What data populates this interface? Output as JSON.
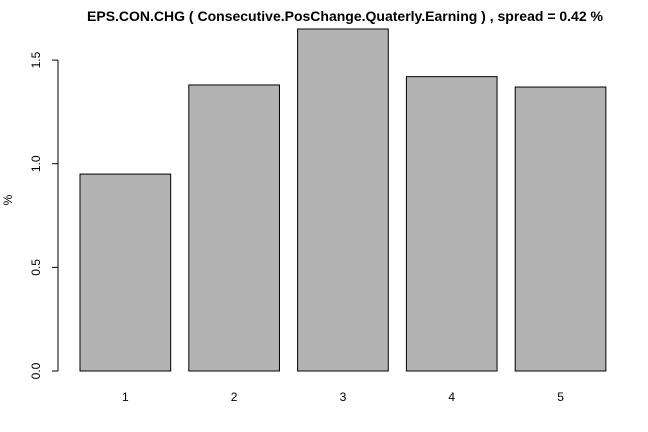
{
  "chart_data": {
    "type": "bar",
    "title": "EPS.CON.CHG ( Consecutive.PosChange.Quaterly.Earning ) , spread = 0.42 %",
    "xlabel": "",
    "ylabel": "%",
    "categories": [
      "1",
      "2",
      "3",
      "4",
      "5"
    ],
    "values": [
      0.95,
      1.38,
      1.65,
      1.42,
      1.37
    ],
    "ylim": [
      0,
      1.65
    ],
    "yticks": [
      "0.0",
      "0.5",
      "1.0",
      "1.5"
    ],
    "bar_color": "#b3b3b3",
    "grid": false
  }
}
